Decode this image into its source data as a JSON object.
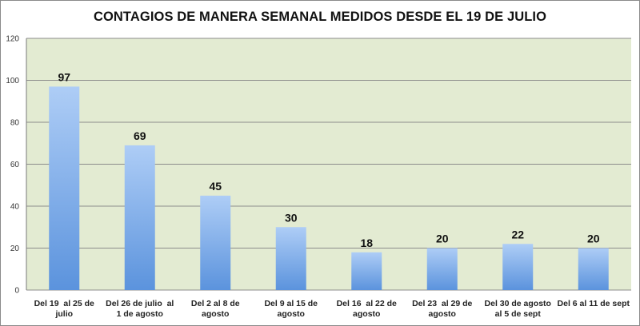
{
  "chart_data": {
    "type": "bar",
    "title": "CONTAGIOS DE MANERA SEMANAL MEDIDOS DESDE EL 19 DE JULIO",
    "xlabel": "",
    "ylabel": "",
    "categories": [
      [
        "Del 19  al 25 de",
        "julio"
      ],
      [
        "Del 26 de julio  al",
        "1 de agosto"
      ],
      [
        "Del 2 al 8 de",
        "agosto"
      ],
      [
        "Del 9 al 15 de",
        "agosto"
      ],
      [
        "Del 16  al 22 de",
        "agosto"
      ],
      [
        "Del 23  al 29 de",
        "agosto"
      ],
      [
        "Del 30 de agosto",
        "al 5 de sept"
      ],
      [
        "Del 6 al 11 de sept"
      ]
    ],
    "values": [
      97,
      69,
      45,
      30,
      18,
      20,
      22,
      20
    ],
    "ylim": [
      0,
      120
    ],
    "yticks": [
      0,
      20,
      40,
      60,
      80,
      100,
      120
    ],
    "grid": true,
    "legend": "none",
    "colors": {
      "plot_background": "#e3ebd2",
      "bar_top": "#aecdf6",
      "bar_bottom": "#5b93dd",
      "gridline": "#8c8c8c"
    }
  }
}
